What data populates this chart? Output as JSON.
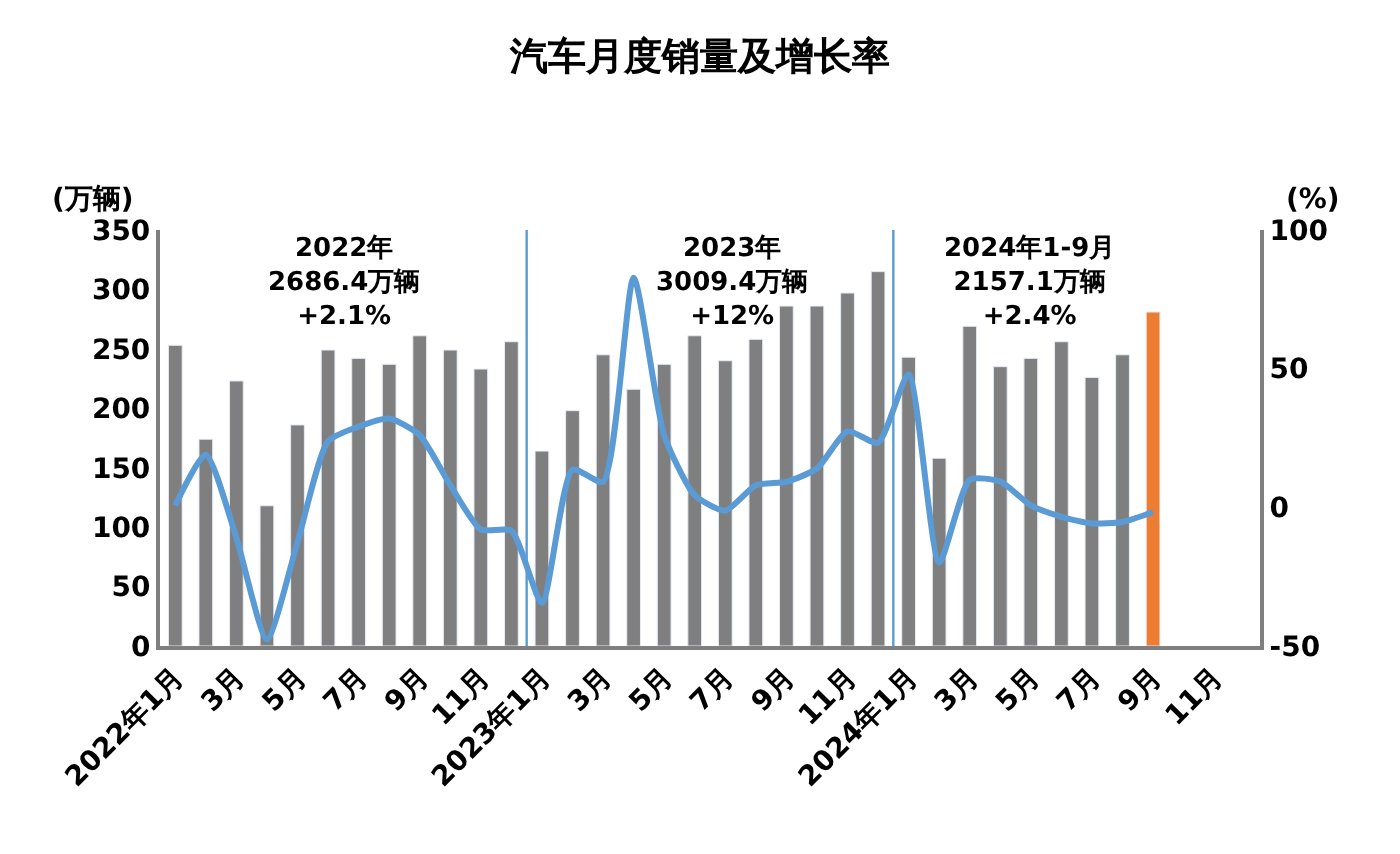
{
  "chart_data": {
    "type": "bar",
    "title": "汽车月度销量及增长率",
    "ylabel": "(万辆)",
    "y2label": "(%)",
    "categories": [
      "2022年1月",
      null,
      "3月",
      null,
      "5月",
      null,
      "7月",
      null,
      "9月",
      null,
      "11月",
      null,
      "2023年1月",
      null,
      "3月",
      null,
      "5月",
      null,
      "7月",
      null,
      "9月",
      null,
      "11月",
      null,
      "2024年1月",
      null,
      "3月",
      null,
      "5月",
      null,
      "7月",
      null,
      "9月",
      null,
      "11月",
      null
    ],
    "series": [
      {
        "colors": [
          "#7f7f7f",
          "#7f7f7f",
          "#7f7f7f",
          "#7f7f7f",
          "#7f7f7f",
          "#7f7f7f",
          "#7f7f7f",
          "#7f7f7f",
          "#7f7f7f",
          "#7f7f7f",
          "#7f7f7f",
          "#7f7f7f",
          "#7f7f7f",
          "#7f7f7f",
          "#7f7f7f",
          "#7f7f7f",
          "#7f7f7f",
          "#7f7f7f",
          "#7f7f7f",
          "#7f7f7f",
          "#7f7f7f",
          "#7f7f7f",
          "#7f7f7f",
          "#7f7f7f",
          "#7f7f7f",
          "#7f7f7f",
          "#7f7f7f",
          "#7f7f7f",
          "#7f7f7f",
          "#7f7f7f",
          "#7f7f7f",
          "#7f7f7f",
          "#ed7d31",
          "#7f7f7f",
          "#7f7f7f",
          "#7f7f7f"
        ],
        "values": [
          253,
          174,
          223,
          118,
          186,
          249,
          242,
          237,
          261,
          249,
          233,
          256,
          164,
          198,
          245,
          216,
          237,
          261,
          240,
          258,
          286,
          286,
          297,
          315,
          243,
          158,
          269,
          235,
          242,
          256,
          226,
          245,
          281,
          null,
          null,
          null
        ]
      },
      {
        "type": "line",
        "axis": "y2",
        "color": "#5b9bd5",
        "marker": "none",
        "line_style": "solid",
        "values": [
          0.7,
          19,
          -11,
          -47.6,
          -12.6,
          23.8,
          29.1,
          32,
          26,
          8,
          -8,
          -8.4,
          -34.5,
          13.6,
          9.2,
          82.8,
          26,
          4.4,
          -1.2,
          8,
          9.2,
          14,
          27.4,
          23.3,
          48,
          -19.9,
          9.9,
          9.3,
          0.7,
          -3.4,
          -5.8,
          -5.3,
          -1.7,
          null,
          null,
          null
        ]
      }
    ],
    "ylim": [
      0,
      350
    ],
    "yticks": [
      0,
      50,
      100,
      150,
      200,
      250,
      300,
      350
    ],
    "y2lim": [
      -50,
      100
    ],
    "y2ticks": [
      -50,
      0,
      50,
      100
    ],
    "annotations": [
      "2022年\n2686.4万辆\n+2.1%",
      "2023年\n3009.4万辆\n+12%",
      "2024年1-9月\n2157.1万辆\n+2.4%"
    ],
    "grid": false
  }
}
